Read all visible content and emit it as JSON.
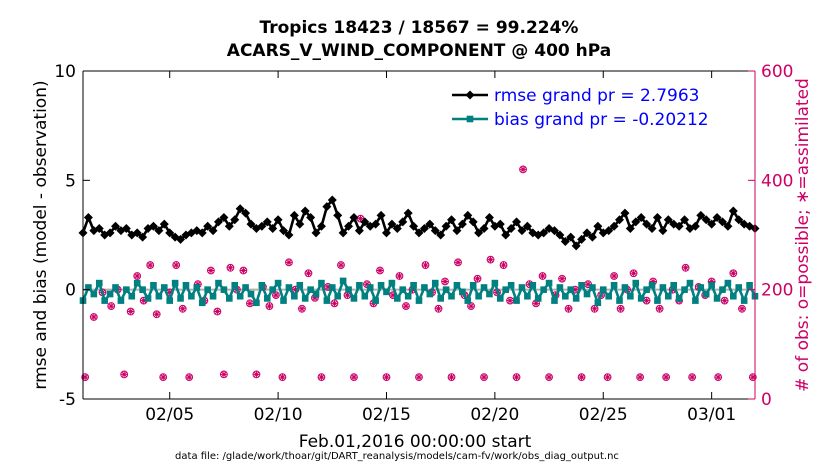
{
  "chart_data": {
    "type": "line",
    "title": "Tropics 18423 / 18567 = 99.224%",
    "subtitle": "ACARS_V_WIND_COMPONENT @ 400 hPa",
    "xlabel": "Feb.01,2016 00:00:00 start",
    "ylabel": "rmse and bias (model - observation)",
    "y2label": "# of obs: o=possible; ∗=assimilated",
    "footer": "data file: /glade/work/thoar/git/DART_reanalysis/models/cam-fv/work/obs_diag_output.nc",
    "xlim": [
      1,
      32
    ],
    "ylim": [
      -5,
      10
    ],
    "y2lim": [
      0,
      600
    ],
    "x_ticks": [
      5,
      10,
      15,
      20,
      25,
      30
    ],
    "x_tick_labels": [
      "02/05",
      "02/10",
      "02/15",
      "02/20",
      "02/25",
      "03/01"
    ],
    "y_ticks": [
      -5,
      0,
      5,
      10
    ],
    "y_tick_labels": [
      "-5",
      "0",
      "5",
      "10"
    ],
    "y2_ticks": [
      0,
      200,
      400,
      600
    ],
    "y2_tick_labels": [
      "0",
      "200",
      "400",
      "600"
    ],
    "grid": false,
    "legend": "top-right",
    "zero_line": 0,
    "x": [
      1.0,
      1.25,
      1.5,
      1.75,
      2.0,
      2.25,
      2.5,
      2.75,
      3.0,
      3.25,
      3.5,
      3.75,
      4.0,
      4.25,
      4.5,
      4.75,
      5.0,
      5.25,
      5.5,
      5.75,
      6.0,
      6.25,
      6.5,
      6.75,
      7.0,
      7.25,
      7.5,
      7.75,
      8.0,
      8.25,
      8.5,
      8.75,
      9.0,
      9.25,
      9.5,
      9.75,
      10.0,
      10.25,
      10.5,
      10.75,
      11.0,
      11.25,
      11.5,
      11.75,
      12.0,
      12.25,
      12.5,
      12.75,
      13.0,
      13.25,
      13.5,
      13.75,
      14.0,
      14.25,
      14.5,
      14.75,
      15.0,
      15.25,
      15.5,
      15.75,
      16.0,
      16.25,
      16.5,
      16.75,
      17.0,
      17.25,
      17.5,
      17.75,
      18.0,
      18.25,
      18.5,
      18.75,
      19.0,
      19.25,
      19.5,
      19.75,
      20.0,
      20.25,
      20.5,
      20.75,
      21.0,
      21.25,
      21.5,
      21.75,
      22.0,
      22.25,
      22.5,
      22.75,
      23.0,
      23.25,
      23.5,
      23.75,
      24.0,
      24.25,
      24.5,
      24.75,
      25.0,
      25.25,
      25.5,
      25.75,
      26.0,
      26.25,
      26.5,
      26.75,
      27.0,
      27.25,
      27.5,
      27.75,
      28.0,
      28.25,
      28.5,
      28.75,
      29.0,
      29.25,
      29.5,
      29.75,
      30.0,
      30.25,
      30.5,
      30.75,
      31.0,
      31.25,
      31.5,
      31.75,
      32.0
    ],
    "series": [
      {
        "name": "rmse grand pr = 2.7963",
        "color": "#000000",
        "marker": "diamond",
        "values": [
          2.6,
          3.3,
          2.7,
          2.8,
          2.5,
          2.6,
          2.9,
          2.7,
          2.8,
          2.5,
          2.6,
          2.4,
          2.8,
          2.9,
          2.7,
          3.0,
          2.6,
          2.4,
          2.3,
          2.5,
          2.6,
          2.7,
          2.6,
          2.9,
          2.7,
          3.1,
          3.3,
          2.9,
          3.2,
          3.7,
          3.5,
          3.0,
          2.8,
          2.9,
          3.1,
          2.8,
          3.2,
          2.7,
          2.5,
          3.4,
          3.0,
          3.6,
          3.3,
          2.6,
          2.9,
          3.8,
          4.1,
          3.4,
          2.6,
          2.9,
          3.3,
          2.7,
          3.1,
          2.9,
          3.0,
          3.4,
          2.6,
          3.0,
          2.8,
          3.1,
          3.5,
          2.9,
          2.6,
          2.8,
          3.0,
          2.7,
          2.5,
          2.9,
          3.2,
          2.7,
          3.0,
          3.4,
          3.1,
          2.6,
          2.8,
          3.3,
          2.9,
          3.0,
          2.5,
          2.8,
          3.1,
          2.7,
          2.9,
          2.6,
          2.5,
          2.6,
          2.8,
          2.7,
          2.5,
          2.2,
          2.4,
          2.0,
          2.3,
          2.6,
          2.4,
          2.9,
          2.6,
          2.7,
          2.9,
          3.2,
          3.5,
          2.8,
          3.1,
          3.3,
          3.0,
          2.8,
          3.3,
          2.7,
          3.2,
          3.0,
          2.9,
          3.2,
          2.8,
          2.9,
          3.4,
          3.2,
          3.0,
          3.3,
          3.1,
          2.9,
          3.6,
          3.2,
          3.0,
          2.9,
          2.8
        ]
      },
      {
        "name": "bias grand pr = -0.20212",
        "color": "#008080",
        "marker": "square",
        "values": [
          -0.5,
          0.1,
          -0.2,
          0.3,
          -0.5,
          -0.2,
          0.1,
          -0.5,
          0.0,
          -0.3,
          0.3,
          0.0,
          -0.4,
          0.2,
          -0.3,
          0.1,
          -0.5,
          0.3,
          -0.4,
          0.2,
          -0.3,
          0.1,
          -0.6,
          0.0,
          -0.3,
          0.3,
          0.0,
          -0.4,
          0.2,
          -0.3,
          0.1,
          -0.2,
          -0.6,
          0.2,
          -0.4,
          0.0,
          0.3,
          -0.5,
          0.1,
          -0.3,
          0.2,
          -0.4,
          0.0,
          -0.2,
          0.3,
          -0.5,
          0.1,
          -0.3,
          0.4,
          0.0,
          -0.4,
          0.2,
          -0.3,
          0.1,
          -0.5,
          0.2,
          -0.1,
          0.3,
          -0.4,
          0.0,
          -0.3,
          0.2,
          -0.5,
          0.1,
          -0.2,
          0.3,
          -0.4,
          0.0,
          -0.3,
          0.2,
          -0.1,
          -0.5,
          0.2,
          -0.3,
          0.1,
          -0.2,
          0.3,
          -0.4,
          0.0,
          0.2,
          -0.5,
          0.1,
          -0.3,
          0.2,
          -0.4,
          0.0,
          0.3,
          -0.5,
          0.1,
          -0.3,
          0.0,
          -0.4,
          0.2,
          -0.2,
          0.1,
          -0.6,
          0.0,
          -0.3,
          0.2,
          -0.5,
          0.1,
          -0.3,
          0.3,
          -0.4,
          0.0,
          0.2,
          -0.5,
          0.1,
          -0.3,
          0.2,
          -0.4,
          0.0,
          0.3,
          -0.5,
          0.1,
          -0.2,
          0.2,
          -0.4,
          0.0,
          0.3,
          -0.3,
          0.1,
          -0.5,
          0.2,
          -0.3
        ]
      }
    ],
    "obs_possible": {
      "name": "o=possible",
      "color": "#cc0066",
      "marker": "circle",
      "axis": "right",
      "points": [
        [
          1.1,
          40
        ],
        [
          1.5,
          150
        ],
        [
          1.9,
          195
        ],
        [
          2.3,
          170
        ],
        [
          2.6,
          200
        ],
        [
          2.9,
          45
        ],
        [
          3.2,
          160
        ],
        [
          3.5,
          225
        ],
        [
          3.8,
          180
        ],
        [
          4.1,
          245
        ],
        [
          4.4,
          155
        ],
        [
          4.7,
          40
        ],
        [
          5.0,
          195
        ],
        [
          5.3,
          245
        ],
        [
          5.6,
          165
        ],
        [
          5.9,
          40
        ],
        [
          6.3,
          210
        ],
        [
          6.6,
          180
        ],
        [
          6.9,
          235
        ],
        [
          7.2,
          160
        ],
        [
          7.5,
          45
        ],
        [
          7.8,
          240
        ],
        [
          8.1,
          200
        ],
        [
          8.4,
          235
        ],
        [
          8.7,
          175
        ],
        [
          9.0,
          45
        ],
        [
          9.3,
          205
        ],
        [
          9.6,
          170
        ],
        [
          9.9,
          190
        ],
        [
          10.2,
          40
        ],
        [
          10.5,
          250
        ],
        [
          10.8,
          200
        ],
        [
          11.1,
          165
        ],
        [
          11.4,
          230
        ],
        [
          11.7,
          185
        ],
        [
          12.0,
          40
        ],
        [
          12.3,
          205
        ],
        [
          12.6,
          175
        ],
        [
          12.9,
          245
        ],
        [
          13.2,
          190
        ],
        [
          13.5,
          40
        ],
        [
          13.8,
          330
        ],
        [
          14.1,
          210
        ],
        [
          14.4,
          175
        ],
        [
          14.7,
          235
        ],
        [
          15.0,
          40
        ],
        [
          15.3,
          190
        ],
        [
          15.6,
          225
        ],
        [
          15.9,
          170
        ],
        [
          16.2,
          200
        ],
        [
          16.5,
          40
        ],
        [
          16.8,
          245
        ],
        [
          17.1,
          195
        ],
        [
          17.4,
          165
        ],
        [
          17.7,
          215
        ],
        [
          18.0,
          40
        ],
        [
          18.3,
          250
        ],
        [
          18.6,
          190
        ],
        [
          18.9,
          170
        ],
        [
          19.2,
          220
        ],
        [
          19.5,
          40
        ],
        [
          19.8,
          255
        ],
        [
          20.1,
          195
        ],
        [
          20.4,
          245
        ],
        [
          20.7,
          180
        ],
        [
          21.0,
          40
        ],
        [
          21.3,
          420
        ],
        [
          21.6,
          210
        ],
        [
          21.9,
          175
        ],
        [
          22.2,
          225
        ],
        [
          22.5,
          40
        ],
        [
          22.8,
          190
        ],
        [
          23.1,
          220
        ],
        [
          23.4,
          165
        ],
        [
          23.7,
          200
        ],
        [
          24.0,
          40
        ],
        [
          24.3,
          210
        ],
        [
          24.6,
          165
        ],
        [
          24.9,
          190
        ],
        [
          25.2,
          40
        ],
        [
          25.5,
          225
        ],
        [
          25.8,
          165
        ],
        [
          26.1,
          200
        ],
        [
          26.4,
          230
        ],
        [
          26.7,
          40
        ],
        [
          27.0,
          180
        ],
        [
          27.3,
          215
        ],
        [
          27.6,
          165
        ],
        [
          27.9,
          40
        ],
        [
          28.2,
          200
        ],
        [
          28.5,
          180
        ],
        [
          28.8,
          240
        ],
        [
          29.1,
          40
        ],
        [
          29.4,
          205
        ],
        [
          29.7,
          190
        ],
        [
          30.0,
          215
        ],
        [
          30.3,
          40
        ],
        [
          30.6,
          180
        ],
        [
          31.0,
          230
        ],
        [
          31.4,
          165
        ],
        [
          31.9,
          40
        ]
      ]
    },
    "obs_assimilated": {
      "name": "∗=assimilated",
      "color": "#cc0066",
      "marker": "asterisk",
      "axis": "right",
      "points": [
        [
          1.1,
          40
        ],
        [
          1.5,
          150
        ],
        [
          1.9,
          195
        ],
        [
          2.3,
          170
        ],
        [
          2.6,
          200
        ],
        [
          2.9,
          45
        ],
        [
          3.2,
          160
        ],
        [
          3.5,
          225
        ],
        [
          3.8,
          180
        ],
        [
          4.1,
          245
        ],
        [
          4.4,
          155
        ],
        [
          4.7,
          40
        ],
        [
          5.0,
          195
        ],
        [
          5.3,
          245
        ],
        [
          5.6,
          165
        ],
        [
          5.9,
          40
        ],
        [
          6.3,
          210
        ],
        [
          6.6,
          180
        ],
        [
          6.9,
          235
        ],
        [
          7.2,
          160
        ],
        [
          7.5,
          45
        ],
        [
          7.8,
          240
        ],
        [
          8.1,
          200
        ],
        [
          8.4,
          235
        ],
        [
          8.7,
          175
        ],
        [
          9.0,
          45
        ],
        [
          9.3,
          205
        ],
        [
          9.6,
          170
        ],
        [
          9.9,
          190
        ],
        [
          10.2,
          40
        ],
        [
          10.5,
          250
        ],
        [
          10.8,
          200
        ],
        [
          11.1,
          165
        ],
        [
          11.4,
          230
        ],
        [
          11.7,
          185
        ],
        [
          12.0,
          40
        ],
        [
          12.3,
          205
        ],
        [
          12.6,
          175
        ],
        [
          12.9,
          245
        ],
        [
          13.2,
          190
        ],
        [
          13.5,
          40
        ],
        [
          13.8,
          330
        ],
        [
          14.1,
          210
        ],
        [
          14.4,
          175
        ],
        [
          14.7,
          235
        ],
        [
          15.0,
          40
        ],
        [
          15.3,
          190
        ],
        [
          15.6,
          225
        ],
        [
          15.9,
          170
        ],
        [
          16.2,
          200
        ],
        [
          16.5,
          40
        ],
        [
          16.8,
          245
        ],
        [
          17.1,
          195
        ],
        [
          17.4,
          165
        ],
        [
          17.7,
          215
        ],
        [
          18.0,
          40
        ],
        [
          18.3,
          250
        ],
        [
          18.6,
          190
        ],
        [
          18.9,
          170
        ],
        [
          19.2,
          220
        ],
        [
          19.5,
          40
        ],
        [
          19.8,
          255
        ],
        [
          20.1,
          195
        ],
        [
          20.4,
          245
        ],
        [
          20.7,
          180
        ],
        [
          21.0,
          40
        ],
        [
          21.3,
          420
        ],
        [
          21.6,
          210
        ],
        [
          21.9,
          175
        ],
        [
          22.2,
          225
        ],
        [
          22.5,
          40
        ],
        [
          22.8,
          190
        ],
        [
          23.1,
          220
        ],
        [
          23.4,
          165
        ],
        [
          23.7,
          200
        ],
        [
          24.0,
          40
        ],
        [
          24.3,
          210
        ],
        [
          24.6,
          165
        ],
        [
          24.9,
          190
        ],
        [
          25.2,
          40
        ],
        [
          25.5,
          225
        ],
        [
          25.8,
          165
        ],
        [
          26.1,
          200
        ],
        [
          26.4,
          230
        ],
        [
          26.7,
          40
        ],
        [
          27.0,
          180
        ],
        [
          27.3,
          215
        ],
        [
          27.6,
          165
        ],
        [
          27.9,
          40
        ],
        [
          28.2,
          200
        ],
        [
          28.5,
          180
        ],
        [
          28.8,
          240
        ],
        [
          29.1,
          40
        ],
        [
          29.4,
          205
        ],
        [
          29.7,
          190
        ],
        [
          30.0,
          215
        ],
        [
          30.3,
          40
        ],
        [
          30.6,
          180
        ],
        [
          31.0,
          230
        ],
        [
          31.4,
          165
        ],
        [
          31.9,
          40
        ]
      ]
    }
  }
}
